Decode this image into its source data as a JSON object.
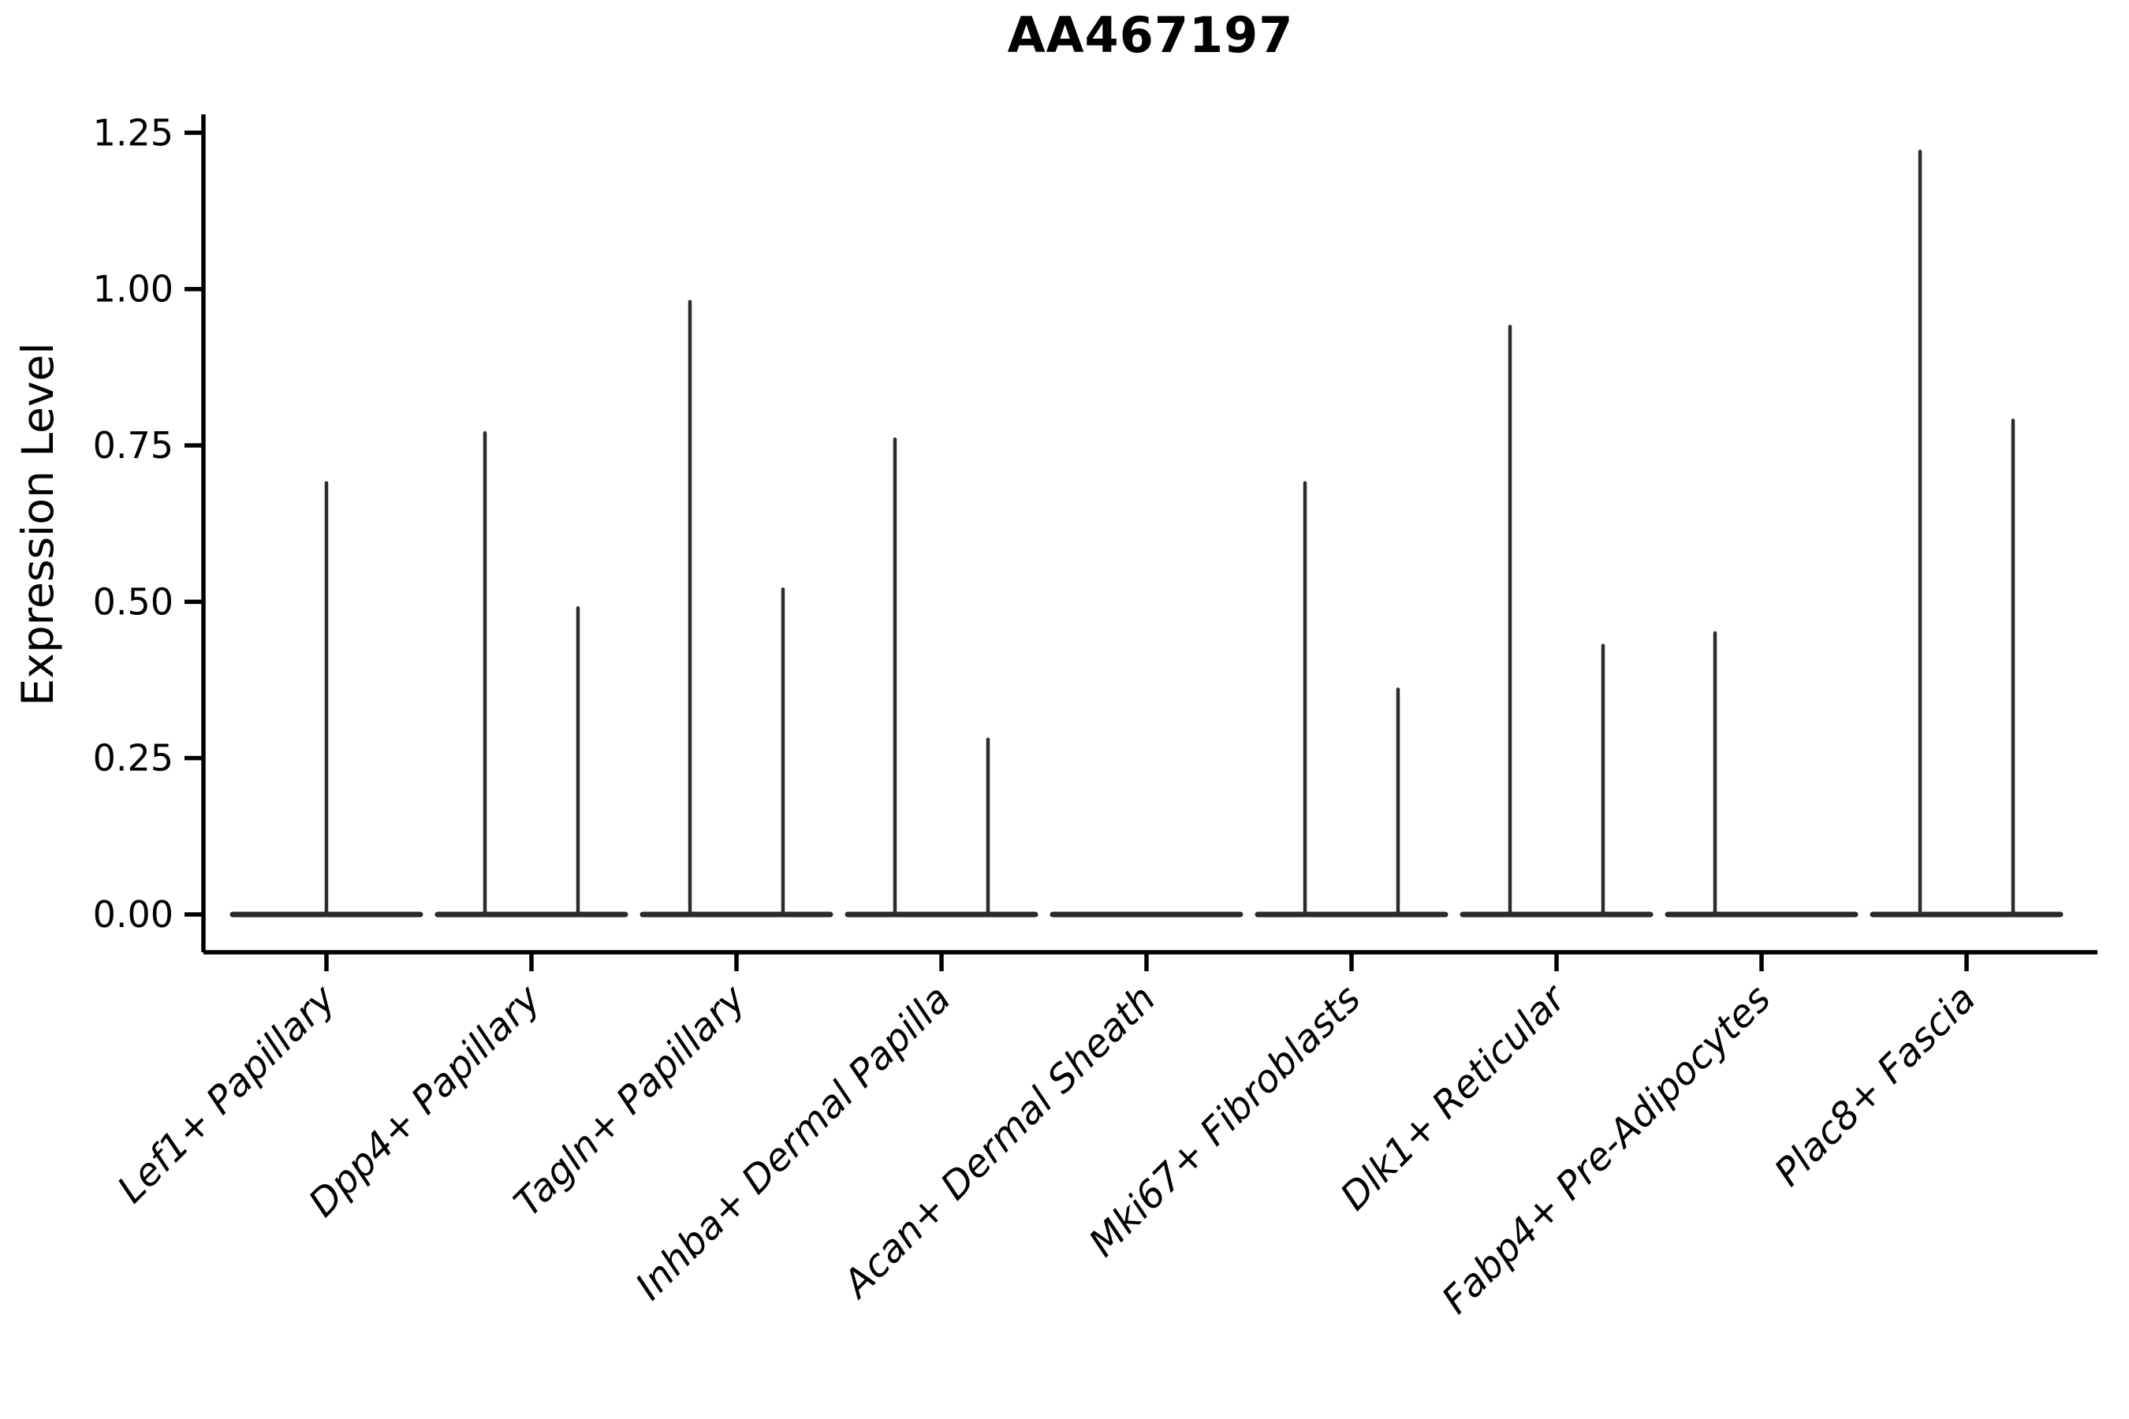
{
  "page": {
    "background": "#ffffff"
  },
  "chart_data": {
    "type": "violin",
    "title": "AA467197",
    "xlabel": "",
    "ylabel": "Expression Level",
    "ylim": [
      -0.06,
      1.28
    ],
    "grid": false,
    "legend": null,
    "yticks": [
      "0.00",
      "0.25",
      "0.50",
      "0.75",
      "1.00",
      "1.25"
    ],
    "categories": [
      "Lef1+ Papillary",
      "Dpp4+ Papillary",
      "Tagln+ Papillary",
      "Inhba+ Dermal Papilla",
      "Acan+ Dermal Sheath",
      "Mki67+ Fibroblasts",
      "Dlk1+ Reticular",
      "Fabp4+ Pre-Adipocytes",
      "Plac8+ Fascia"
    ],
    "violins": [
      {
        "category": "Lef1+ Papillary",
        "spikes": [
          {
            "position": "center",
            "max": 0.69
          }
        ]
      },
      {
        "category": "Dpp4+ Papillary",
        "spikes": [
          {
            "position": "left",
            "max": 0.77
          },
          {
            "position": "right",
            "max": 0.49
          }
        ]
      },
      {
        "category": "Tagln+ Papillary",
        "spikes": [
          {
            "position": "left",
            "max": 0.98
          },
          {
            "position": "right",
            "max": 0.52
          }
        ]
      },
      {
        "category": "Inhba+ Dermal Papilla",
        "spikes": [
          {
            "position": "left",
            "max": 0.76
          },
          {
            "position": "right",
            "max": 0.28
          }
        ]
      },
      {
        "category": "Acan+ Dermal Sheath",
        "spikes": []
      },
      {
        "category": "Mki67+ Fibroblasts",
        "spikes": [
          {
            "position": "left",
            "max": 0.69
          },
          {
            "position": "right",
            "max": 0.36
          }
        ]
      },
      {
        "category": "Dlk1+ Reticular",
        "spikes": [
          {
            "position": "left",
            "max": 0.94
          },
          {
            "position": "right",
            "max": 0.43
          }
        ]
      },
      {
        "category": "Fabp4+ Pre-Adipocytes",
        "spikes": [
          {
            "position": "left",
            "max": 0.45
          }
        ]
      },
      {
        "category": "Plac8+ Fascia",
        "spikes": [
          {
            "position": "left",
            "max": 1.22
          },
          {
            "position": "right",
            "max": 0.79
          }
        ]
      }
    ],
    "style": {
      "line_color": "#2b2b2b",
      "axis_color": "#000000",
      "background": "#ffffff",
      "x_label_rotation_deg": 45,
      "x_labels_italic": true
    }
  }
}
